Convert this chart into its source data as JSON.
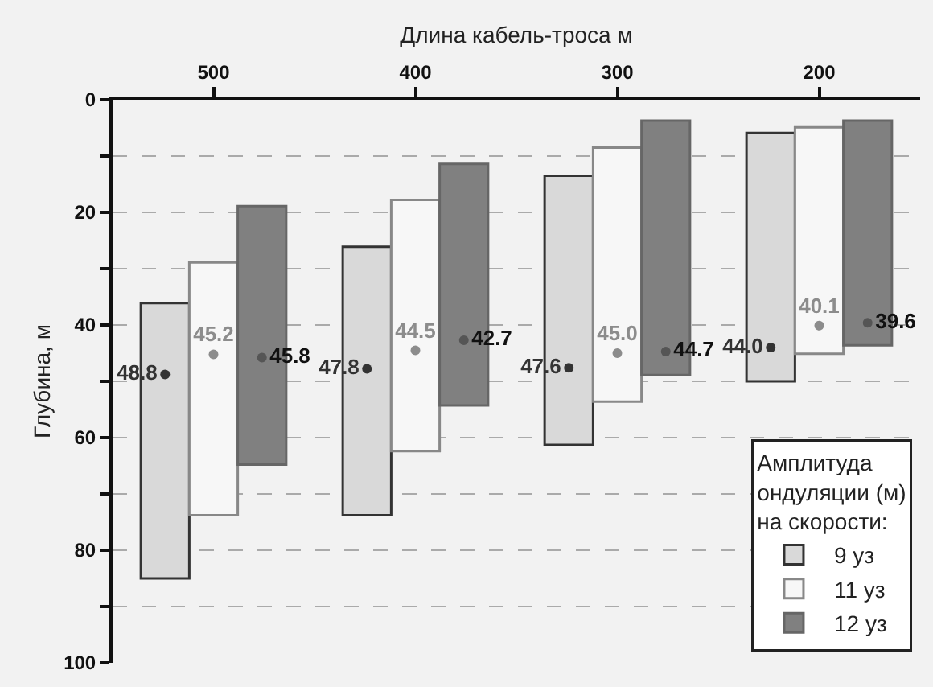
{
  "chart_data": {
    "type": "bar",
    "xlabel": "Длина кабель-троса м",
    "ylabel": "Глубина, м",
    "legend_title": "Амплитуда\nондуляции (м)\nна скорости:",
    "categories": [
      "500",
      "400",
      "300",
      "200"
    ],
    "series": [
      {
        "name": "9 уз",
        "color": "#d9d9d9",
        "base": [
          36.1,
          26.1,
          13.5,
          5.9
        ],
        "values": [
          48.9,
          47.7,
          47.8,
          44.1
        ]
      },
      {
        "name": "11 уз",
        "color": "#f7f7f7",
        "base": [
          28.9,
          17.8,
          8.5,
          4.9
        ],
        "values": [
          44.9,
          44.6,
          45.1,
          40.2
        ]
      },
      {
        "name": "12 уз",
        "color": "#808080",
        "base": [
          18.9,
          11.4,
          3.7,
          3.7
        ],
        "values": [
          45.9,
          42.9,
          45.2,
          39.9
        ]
      },
      {
        "type": "scatter",
        "color": "#333333",
        "x": [
          "500",
          "400",
          "300",
          "200"
        ],
        "values": [
          48.8,
          47.8,
          47.6,
          44.0
        ],
        "value_labels": [
          "48.8",
          "47.8",
          "47.6",
          "44.0"
        ]
      },
      {
        "type": "scatter",
        "color": "#8c8c8c",
        "x": [
          "500",
          "400",
          "300",
          "200"
        ],
        "values": [
          45.2,
          44.5,
          45.0,
          40.1
        ],
        "value_labels": [
          "45.2",
          "44.5",
          "45.0",
          "40.1"
        ]
      },
      {
        "type": "scatter",
        "color": "#555555",
        "x": [
          "500",
          "400",
          "300",
          "200"
        ],
        "values": [
          45.8,
          42.7,
          44.7,
          39.6
        ],
        "value_labels": [
          "45.8",
          "42.7",
          "44.7",
          "39.6"
        ]
      }
    ],
    "ylim": [
      100,
      0
    ],
    "yticks": [
      0,
      {
        "value": 10,
        "label": null
      },
      20,
      {
        "value": 30,
        "label": null
      },
      40,
      {
        "value": 50,
        "label": null
      },
      60,
      {
        "value": 70,
        "label": null
      },
      80,
      {
        "value": 90,
        "label": null
      },
      100
    ],
    "grid": true,
    "legend": "bottom right",
    "marker": "circle"
  }
}
